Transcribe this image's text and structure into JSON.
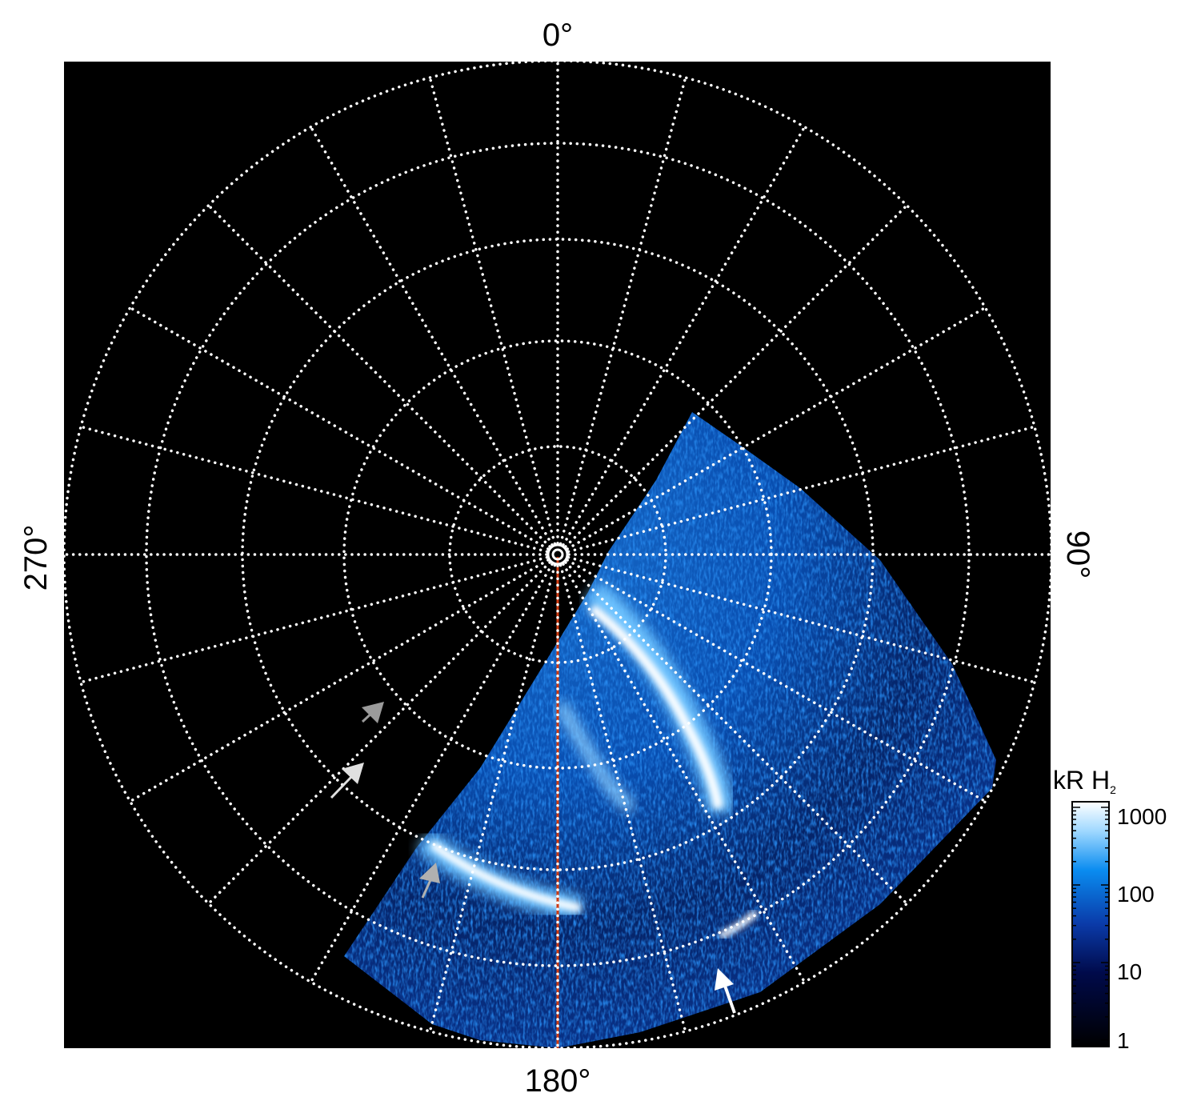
{
  "axes": {
    "top_label": "0°",
    "bottom_label": "180°",
    "left_label": "270°",
    "right_label": "90°"
  },
  "grid": {
    "meridian_step_deg": 15,
    "style": "dotted",
    "color": "#ffffff"
  },
  "colorbar": {
    "title": "kR H",
    "title_subscript": "2",
    "scale": "log",
    "range": [
      1,
      1500
    ],
    "ticks": [
      "1000",
      "100",
      "10",
      "1"
    ],
    "colors": [
      "#000000",
      "#000a4a",
      "#0a3aa8",
      "#0a8cf0",
      "#9fd8ff",
      "#ffffff"
    ]
  },
  "markers": {
    "reference_line_color": "#d03a10",
    "arrow_colors": {
      "gray": "#9a9a9a",
      "white": "#e8e8e8"
    }
  }
}
